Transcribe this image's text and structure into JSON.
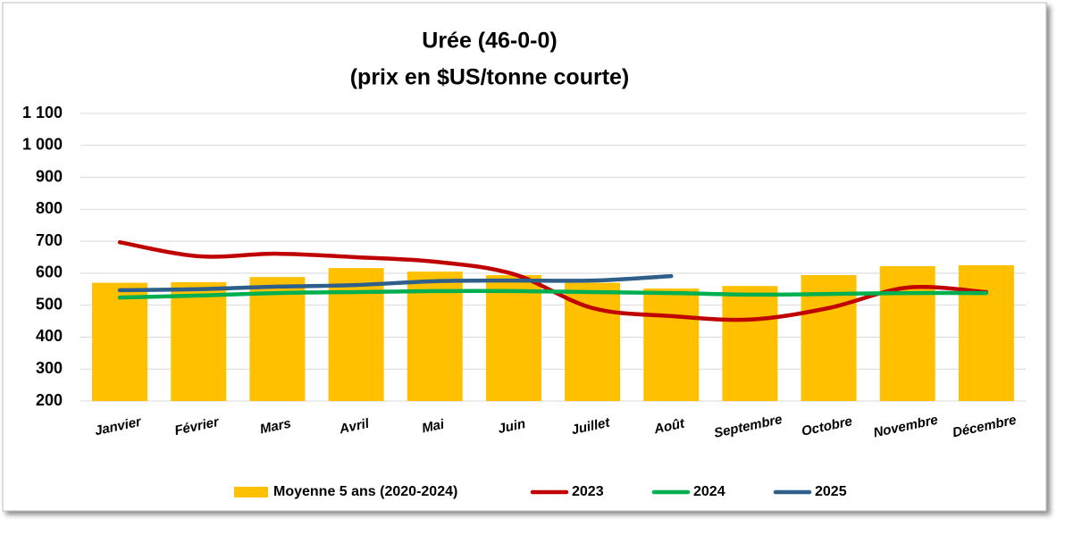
{
  "chart_data": {
    "type": "combo",
    "title": [
      "Urée (46-0-0)",
      "(prix en $US/tonne courte)"
    ],
    "categories": [
      "Janvier",
      "Février",
      "Mars",
      "Avril",
      "Mai",
      "Juin",
      "Juillet",
      "Août",
      "Septembre",
      "Octobre",
      "Novembre",
      "Décembre"
    ],
    "series": [
      {
        "name": "Moyenne 5 ans (2020-2024)",
        "type": "bar",
        "color": "#ffc000",
        "values": [
          570,
          572,
          588,
          616,
          605,
          594,
          570,
          552,
          560,
          594,
          622,
          625
        ]
      },
      {
        "name": "2023",
        "type": "line",
        "color": "#c00000",
        "values": [
          697,
          653,
          661,
          650,
          636,
          597,
          491,
          466,
          455,
          491,
          555,
          541
        ]
      },
      {
        "name": "2024",
        "type": "line",
        "color": "#00b050",
        "values": [
          524,
          530,
          538,
          541,
          544,
          544,
          541,
          538,
          533,
          535,
          538,
          538
        ]
      },
      {
        "name": "2025",
        "type": "line",
        "color": "#2e5f8a",
        "values": [
          547,
          550,
          558,
          563,
          575,
          577,
          577,
          591,
          null,
          null,
          null,
          null
        ]
      }
    ],
    "ylim": [
      200,
      1100
    ],
    "yticks": [
      200,
      300,
      400,
      500,
      600,
      700,
      800,
      900,
      {
        "value": 1000,
        "label": "1 000"
      },
      {
        "value": 1100,
        "label": "1 100"
      }
    ],
    "grid": true,
    "legend": "bottom"
  }
}
